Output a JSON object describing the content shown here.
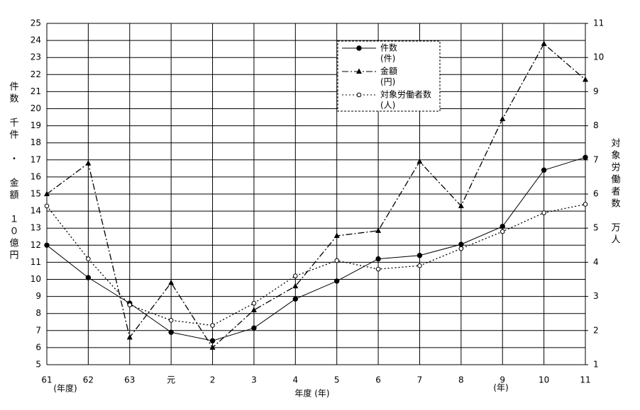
{
  "chart_data": {
    "type": "line",
    "categories": [
      "61",
      "62",
      "63",
      "元",
      "2",
      "3",
      "4",
      "5",
      "6",
      "7",
      "8",
      "9",
      "10",
      "11"
    ],
    "x_label": "年度 (年)",
    "x_notes": [
      "(年度)",
      "(年)"
    ],
    "y_label": "件数　千件　・　金額　１０億円",
    "y2_label": "対象労働者数　万人",
    "ylim": [
      5,
      25
    ],
    "yticks": [
      5,
      6,
      7,
      8,
      9,
      10,
      11,
      12,
      13,
      14,
      15,
      16,
      17,
      18,
      19,
      20,
      21,
      22,
      23,
      24,
      25
    ],
    "y2lim": [
      1,
      11
    ],
    "y2ticks": [
      1,
      2,
      3,
      4,
      5,
      6,
      7,
      8,
      9,
      10,
      11
    ],
    "grid": true,
    "series": [
      {
        "name": "件数",
        "unit": "(件)",
        "color": "#000000",
        "line_style": "solid",
        "marker": "circle",
        "values": [
          12.0,
          10.1,
          8.6,
          6.9,
          6.4,
          7.15,
          8.85,
          9.9,
          11.2,
          11.4,
          12.05,
          13.1,
          16.4,
          17.15
        ]
      },
      {
        "name": "金額",
        "unit": "(円)",
        "color": "#000000",
        "line_style": "dashdot",
        "marker": "triangle",
        "values": [
          15.0,
          16.8,
          6.6,
          9.8,
          6.0,
          8.2,
          9.6,
          12.55,
          12.85,
          16.9,
          14.3,
          19.4,
          23.8,
          21.7
        ]
      },
      {
        "name": "対象労働者数",
        "unit": "(人)",
        "color": "#000000",
        "line_style": "dotted",
        "marker": "open-circle",
        "axis": "y2",
        "values": [
          5.65,
          4.1,
          2.75,
          2.3,
          2.15,
          2.8,
          3.6,
          4.05,
          3.8,
          3.9,
          4.4,
          4.9,
          5.45,
          5.7
        ]
      }
    ]
  }
}
